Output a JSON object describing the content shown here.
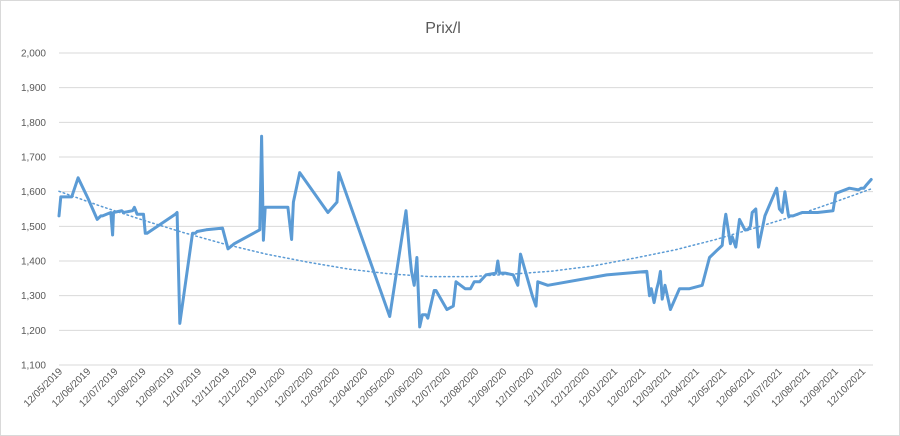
{
  "chart_data": {
    "type": "line",
    "title": "Prix/l",
    "xlabel": "",
    "ylabel": "",
    "x_range": [
      "2019-05-12",
      "2021-10-24"
    ],
    "ylim": [
      1.1,
      2.0
    ],
    "y_ticks": [
      1.1,
      1.2,
      1.3,
      1.4,
      1.5,
      1.6,
      1.7,
      1.8,
      1.9,
      2.0
    ],
    "y_tick_labels": [
      "1,100",
      "1,200",
      "1,300",
      "1,400",
      "1,500",
      "1,600",
      "1,700",
      "1,800",
      "1,900",
      "2,000"
    ],
    "x_ticks": [
      "2019-05-12",
      "2019-06-12",
      "2019-07-12",
      "2019-08-12",
      "2019-09-12",
      "2019-10-12",
      "2019-11-12",
      "2019-12-12",
      "2020-01-12",
      "2020-02-12",
      "2020-03-12",
      "2020-04-12",
      "2020-05-12",
      "2020-06-12",
      "2020-07-12",
      "2020-08-12",
      "2020-09-12",
      "2020-10-12",
      "2020-11-12",
      "2020-12-12",
      "2021-01-12",
      "2021-02-12",
      "2021-03-12",
      "2021-04-12",
      "2021-05-12",
      "2021-06-12",
      "2021-07-12",
      "2021-08-12",
      "2021-09-12",
      "2021-10-12"
    ],
    "x_tick_labels": [
      "12/05/2019",
      "12/06/2019",
      "12/07/2019",
      "12/08/2019",
      "12/09/2019",
      "12/10/2019",
      "12/11/2019",
      "12/12/2019",
      "12/01/2020",
      "12/02/2020",
      "12/03/2020",
      "12/04/2020",
      "12/05/2020",
      "12/06/2020",
      "12/07/2020",
      "12/08/2020",
      "12/09/2020",
      "12/10/2020",
      "12/11/2020",
      "12/12/2020",
      "12/01/2021",
      "12/02/2021",
      "12/03/2021",
      "12/04/2021",
      "12/05/2021",
      "12/06/2021",
      "12/07/2021",
      "12/08/2021",
      "12/09/2021",
      "12/10/2021"
    ],
    "grid": true,
    "legend": "none",
    "colors": {
      "series": "#5b9bd5",
      "trend": "#5b9bd5",
      "grid": "#d9d9d9",
      "text": "#595959"
    },
    "series": [
      {
        "style": "solid",
        "x": [
          "2019-05-12",
          "2019-05-14",
          "2019-05-22",
          "2019-05-26",
          "2019-06-02",
          "2019-06-13",
          "2019-06-23",
          "2019-06-25",
          "2019-06-27",
          "2019-06-29",
          "2019-07-08",
          "2019-07-10",
          "2019-07-11",
          "2019-07-20",
          "2019-07-22",
          "2019-08-01",
          "2019-08-03",
          "2019-08-06",
          "2019-08-13",
          "2019-08-15",
          "2019-08-17",
          "2019-09-17",
          "2019-09-19",
          "2019-09-22",
          "2019-10-06",
          "2019-10-09",
          "2019-10-11",
          "2019-10-21",
          "2019-11-08",
          "2019-11-14",
          "2019-11-21",
          "2019-12-19",
          "2019-12-21",
          "2019-12-23",
          "2019-12-25",
          "2020-01-19",
          "2020-01-23",
          "2020-01-25",
          "2020-02-01",
          "2020-03-03",
          "2020-03-13",
          "2020-03-15",
          "2020-05-10",
          "2020-05-28",
          "2020-06-01",
          "2020-06-03",
          "2020-06-06",
          "2020-06-09",
          "2020-06-12",
          "2020-06-15",
          "2020-06-19",
          "2020-06-21",
          "2020-06-28",
          "2020-06-30",
          "2020-07-12",
          "2020-07-19",
          "2020-07-22",
          "2020-08-01",
          "2020-08-07",
          "2020-08-11",
          "2020-08-17",
          "2020-08-24",
          "2020-09-04",
          "2020-09-06",
          "2020-09-08",
          "2020-09-10",
          "2020-09-14",
          "2020-09-23",
          "2020-09-28",
          "2020-10-01",
          "2020-10-14",
          "2020-10-18",
          "2020-10-20",
          "2020-10-31",
          "2021-01-04",
          "2021-02-17",
          "2021-02-20",
          "2021-02-22",
          "2021-02-25",
          "2021-02-28",
          "2021-03-02",
          "2021-03-04",
          "2021-03-06",
          "2021-03-09",
          "2021-03-15",
          "2021-03-25",
          "2021-04-05",
          "2021-04-19",
          "2021-04-27",
          "2021-05-05",
          "2021-05-09",
          "2021-05-11",
          "2021-05-13",
          "2021-05-15",
          "2021-05-20",
          "2021-05-22",
          "2021-05-26",
          "2021-05-30",
          "2021-06-05",
          "2021-06-08",
          "2021-06-11",
          "2021-06-13",
          "2021-06-17",
          "2021-06-20",
          "2021-06-27",
          "2021-07-10",
          "2021-07-13",
          "2021-07-16",
          "2021-07-19",
          "2021-07-23",
          "2021-07-28",
          "2021-08-07",
          "2021-08-24",
          "2021-09-10",
          "2021-09-13",
          "2021-09-28",
          "2021-10-08",
          "2021-10-11",
          "2021-10-14",
          "2021-10-17",
          "2021-10-22"
        ],
        "y": [
          1.53,
          1.585,
          1.585,
          1.585,
          1.64,
          1.58,
          1.52,
          1.525,
          1.53,
          1.53,
          1.54,
          1.475,
          1.54,
          1.545,
          1.54,
          1.545,
          1.555,
          1.535,
          1.535,
          1.48,
          1.48,
          1.535,
          1.54,
          1.22,
          1.48,
          1.48,
          1.485,
          1.49,
          1.495,
          1.435,
          1.45,
          1.49,
          1.76,
          1.46,
          1.555,
          1.555,
          1.462,
          1.57,
          1.655,
          1.54,
          1.57,
          1.655,
          1.24,
          1.545,
          1.42,
          1.37,
          1.33,
          1.41,
          1.21,
          1.245,
          1.245,
          1.235,
          1.315,
          1.315,
          1.26,
          1.27,
          1.34,
          1.32,
          1.32,
          1.34,
          1.34,
          1.36,
          1.365,
          1.4,
          1.365,
          1.365,
          1.365,
          1.36,
          1.33,
          1.42,
          1.3,
          1.27,
          1.34,
          1.33,
          1.36,
          1.37,
          1.3,
          1.32,
          1.28,
          1.32,
          1.34,
          1.37,
          1.29,
          1.33,
          1.26,
          1.32,
          1.32,
          1.33,
          1.41,
          1.43,
          1.44,
          1.445,
          1.5,
          1.535,
          1.45,
          1.47,
          1.44,
          1.52,
          1.49,
          1.49,
          1.5,
          1.54,
          1.55,
          1.44,
          1.53,
          1.61,
          1.55,
          1.54,
          1.6,
          1.53,
          1.53,
          1.54,
          1.54,
          1.545,
          1.595,
          1.61,
          1.605,
          1.61,
          1.61,
          1.62,
          1.635
        ]
      },
      {
        "style": "dotted",
        "x": [
          "2019-05-12",
          "2019-06-27",
          "2019-08-11",
          "2019-09-26",
          "2019-11-10",
          "2019-12-26",
          "2020-02-09",
          "2020-03-25",
          "2020-05-09",
          "2020-06-23",
          "2020-08-07",
          "2020-09-21",
          "2020-11-05",
          "2020-12-20",
          "2021-02-03",
          "2021-03-20",
          "2021-05-04",
          "2021-06-18",
          "2021-08-02",
          "2021-09-16",
          "2021-10-24"
        ],
        "y": [
          1.601,
          1.558,
          1.519,
          1.482,
          1.449,
          1.42,
          1.397,
          1.377,
          1.363,
          1.355,
          1.355,
          1.362,
          1.371,
          1.386,
          1.408,
          1.432,
          1.462,
          1.497,
          1.533,
          1.574,
          1.61
        ]
      }
    ]
  }
}
